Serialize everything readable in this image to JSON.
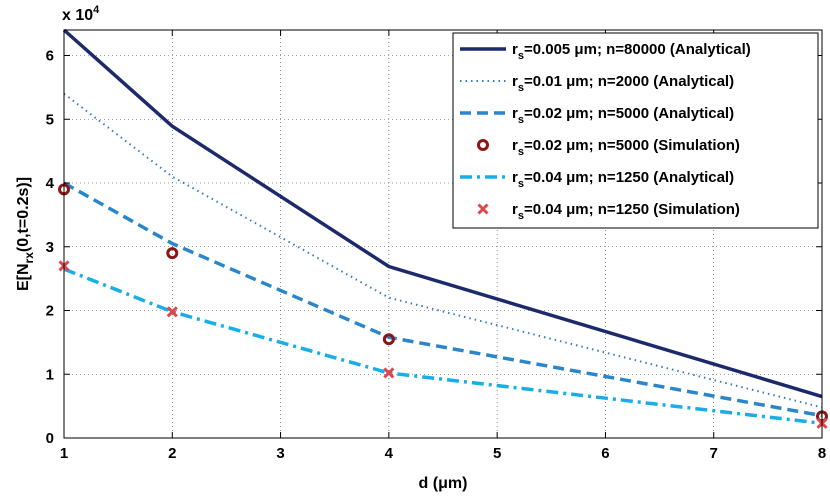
{
  "chart_data": {
    "type": "line",
    "xlabel": "d (μm)",
    "ylabel": "E[N_rx(0,t=0.2s)]",
    "y_multiplier": "x 10^4",
    "xlim": [
      1,
      8
    ],
    "ylim": [
      0,
      64000
    ],
    "x_ticks": [
      1,
      2,
      3,
      4,
      5,
      6,
      7,
      8
    ],
    "y_ticks": [
      0,
      1,
      2,
      3,
      4,
      5,
      6
    ],
    "grid": true,
    "legend_position": "top-right",
    "x": [
      1,
      2,
      4,
      8
    ],
    "series": [
      {
        "name": "r_s=0.005 μm; n=80000 (Analytical)",
        "style": "solid",
        "marker": "none",
        "color": "#1c2a6b",
        "values": [
          64000,
          48900,
          26900,
          6500
        ]
      },
      {
        "name": "r_s=0.01 μm; n=2000 (Analytical)",
        "style": "dotted",
        "marker": "none",
        "color": "#3a78c0",
        "values": [
          54000,
          41000,
          22000,
          4800
        ]
      },
      {
        "name": "r_s=0.02 μm; n=5000 (Analytical)",
        "style": "dashed",
        "marker": "none",
        "color": "#2a86c8",
        "values": [
          40000,
          30500,
          15800,
          3500
        ]
      },
      {
        "name": "r_s=0.02 μm; n=5000 (Simulation)",
        "style": "none",
        "marker": "circle",
        "color": "#8b1616",
        "values": [
          39000,
          29000,
          15500,
          3400
        ]
      },
      {
        "name": "r_s=0.04 μm; n=1250 (Analytical)",
        "style": "dashdot",
        "marker": "none",
        "color": "#18aee8",
        "values": [
          26500,
          19800,
          10200,
          2300
        ]
      },
      {
        "name": "r_s=0.04 μm; n=1250 (Simulation)",
        "style": "none",
        "marker": "x",
        "color": "#e0474c",
        "values": [
          27000,
          19800,
          10200,
          2300
        ]
      }
    ],
    "legend": [
      {
        "sub": "s",
        "text": "=0.005 μm; n=80000 (Analytical)"
      },
      {
        "sub": "s",
        "text": "=0.01 μm; n=2000 (Analytical)"
      },
      {
        "sub": "s",
        "text": "=0.02 μm; n=5000 (Analytical)"
      },
      {
        "sub": "s",
        "text": "=0.02 μm; n=5000 (Simulation)"
      },
      {
        "sub": "s",
        "text": "=0.04 μm; n=1250 (Analytical)"
      },
      {
        "sub": "s",
        "text": "=0.04 μm; n=1250 (Simulation)"
      }
    ]
  }
}
